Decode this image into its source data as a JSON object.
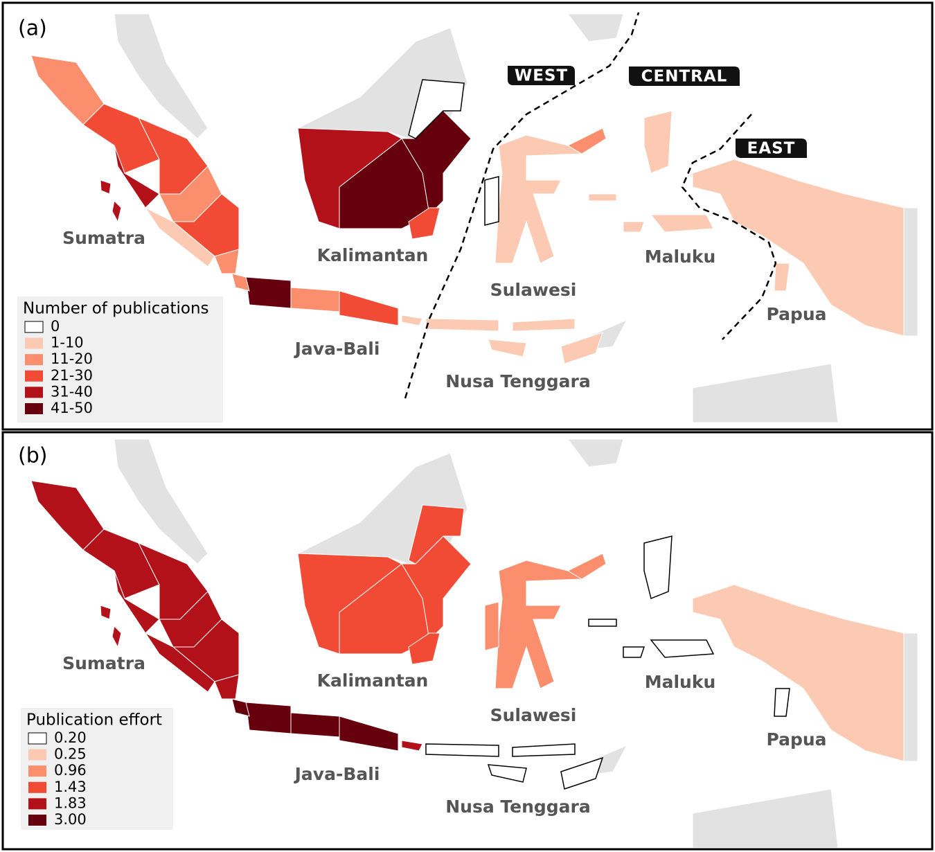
{
  "panels": [
    {
      "label": "(a)",
      "legend": {
        "title": "Number of publications",
        "items": [
          {
            "label": "0",
            "color": "#ffffff"
          },
          {
            "label": "1-10",
            "color": "#fcc9b3"
          },
          {
            "label": "11-20",
            "color": "#fb8e6c"
          },
          {
            "label": "21-30",
            "color": "#f14b36"
          },
          {
            "label": "31-40",
            "color": "#b3111a"
          },
          {
            "label": "41-50",
            "color": "#67000d"
          }
        ]
      },
      "regions": [
        "Sumatra",
        "Kalimantan",
        "Java-Bali",
        "Nusa Tenggara",
        "Sulawesi",
        "Maluku",
        "Papua"
      ],
      "zones": [
        "WEST",
        "CENTRAL",
        "EAST"
      ]
    },
    {
      "label": "(b)",
      "legend": {
        "title": "Publication effort",
        "items": [
          {
            "label": "0.20",
            "color": "#ffffff"
          },
          {
            "label": "0.25",
            "color": "#fcc9b3"
          },
          {
            "label": "0.96",
            "color": "#fb8e6c"
          },
          {
            "label": "1.43",
            "color": "#f14b36"
          },
          {
            "label": "1.83",
            "color": "#b3111a"
          },
          {
            "label": "3.00",
            "color": "#67000d"
          }
        ]
      },
      "regions": [
        "Sumatra",
        "Kalimantan",
        "Java-Bali",
        "Nusa Tenggara",
        "Sulawesi",
        "Maluku",
        "Papua"
      ]
    }
  ]
}
